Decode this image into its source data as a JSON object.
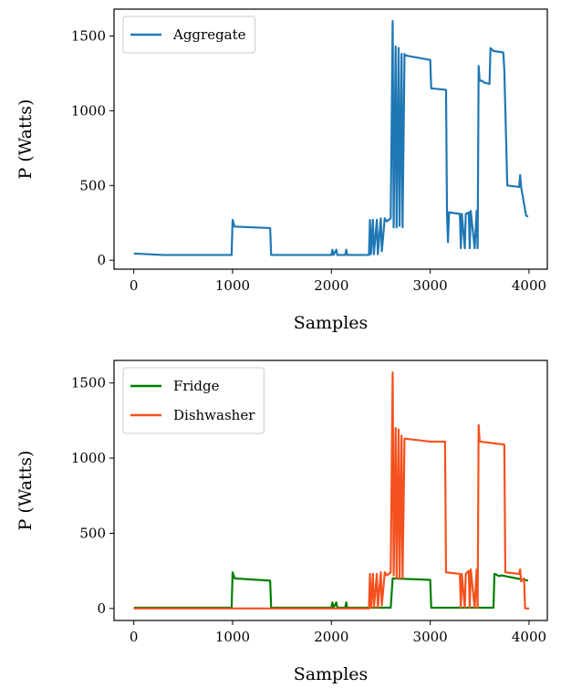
{
  "chart_data": [
    {
      "type": "line",
      "xlabel": "Samples",
      "ylabel": "P (Watts)",
      "xlim": [
        -200,
        4185
      ],
      "ylim": [
        -60,
        1680
      ],
      "xticks": [
        0,
        1000,
        2000,
        3000,
        4000
      ],
      "yticks": [
        0,
        500,
        1000,
        1500
      ],
      "legend": "upper left",
      "series": [
        {
          "name": "Aggregate",
          "color": "#1f77b4",
          "x": [
            0,
            300,
            990,
            1000,
            1020,
            1380,
            1390,
            2000,
            2010,
            2020,
            2050,
            2060,
            2140,
            2150,
            2160,
            2380,
            2390,
            2400,
            2420,
            2430,
            2460,
            2470,
            2500,
            2510,
            2540,
            2560,
            2600,
            2620,
            2630,
            2650,
            2660,
            2680,
            2690,
            2710,
            2720,
            2740,
            2750,
            3000,
            3010,
            3160,
            3170,
            3180,
            3190,
            3300,
            3310,
            3320,
            3350,
            3360,
            3390,
            3400,
            3410,
            3450,
            3470,
            3480,
            3490,
            3500,
            3530,
            3540,
            3600,
            3610,
            3640,
            3740,
            3750,
            3780,
            3900,
            3910,
            3920,
            3970,
            3990
          ],
          "values": [
            45,
            35,
            35,
            270,
            225,
            215,
            35,
            35,
            70,
            35,
            70,
            35,
            35,
            70,
            35,
            35,
            270,
            40,
            270,
            40,
            270,
            40,
            280,
            60,
            280,
            260,
            280,
            1600,
            220,
            1430,
            220,
            1420,
            230,
            1380,
            220,
            1380,
            1370,
            1340,
            1150,
            1140,
            300,
            120,
            320,
            310,
            80,
            310,
            80,
            310,
            320,
            80,
            330,
            80,
            330,
            80,
            1300,
            1200,
            1200,
            1190,
            1180,
            1420,
            1400,
            1390,
            1270,
            500,
            490,
            570,
            490,
            300,
            290
          ]
        }
      ]
    },
    {
      "type": "line",
      "xlabel": "Samples",
      "ylabel": "P (Watts)",
      "xlim": [
        -200,
        4185
      ],
      "ylim": [
        -80,
        1650
      ],
      "xticks": [
        0,
        1000,
        2000,
        3000,
        4000
      ],
      "yticks": [
        0,
        500,
        1000,
        1500
      ],
      "legend": "upper left",
      "series": [
        {
          "name": "Fridge",
          "color": "#008000",
          "x": [
            0,
            990,
            1000,
            1020,
            1380,
            1390,
            2000,
            2010,
            2020,
            2050,
            2060,
            2140,
            2150,
            2160,
            2380,
            2600,
            2620,
            3000,
            3010,
            3640,
            3650,
            3700,
            3720,
            3990
          ],
          "values": [
            5,
            5,
            240,
            200,
            185,
            5,
            5,
            40,
            5,
            40,
            5,
            5,
            40,
            5,
            5,
            5,
            200,
            190,
            5,
            5,
            230,
            215,
            220,
            185
          ]
        },
        {
          "name": "Dishwasher",
          "color": "#f4511e",
          "x": [
            0,
            2380,
            2390,
            2400,
            2420,
            2430,
            2460,
            2470,
            2500,
            2510,
            2540,
            2560,
            2600,
            2620,
            2630,
            2650,
            2660,
            2680,
            2690,
            2710,
            2720,
            2740,
            3000,
            3150,
            3160,
            3300,
            3310,
            3320,
            3350,
            3360,
            3390,
            3400,
            3410,
            3450,
            3470,
            3480,
            3490,
            3500,
            3750,
            3760,
            3900,
            3910,
            3920,
            3950,
            3960,
            4000
          ],
          "values": [
            0,
            0,
            230,
            5,
            230,
            5,
            230,
            5,
            240,
            20,
            240,
            220,
            240,
            1570,
            220,
            1200,
            200,
            1190,
            200,
            1150,
            200,
            1130,
            1110,
            1110,
            240,
            230,
            5,
            230,
            5,
            230,
            250,
            5,
            260,
            5,
            260,
            5,
            1220,
            1110,
            1090,
            240,
            230,
            260,
            180,
            200,
            0,
            0
          ]
        }
      ]
    }
  ]
}
